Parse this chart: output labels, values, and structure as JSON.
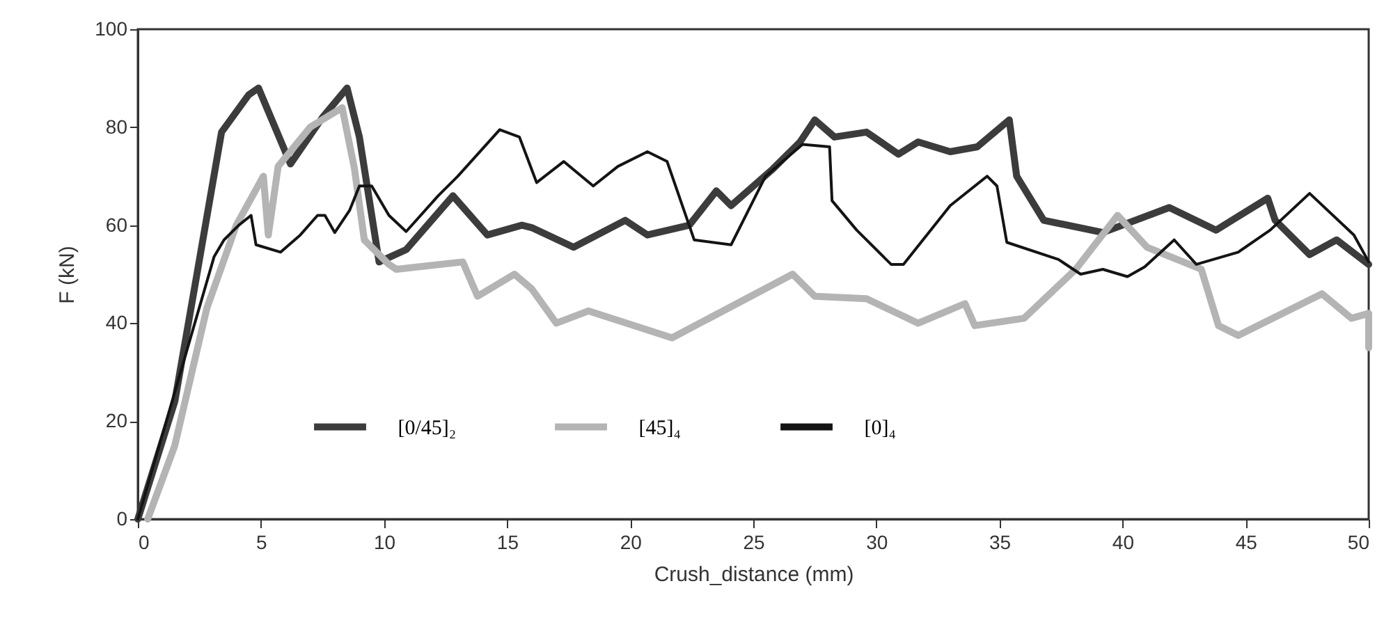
{
  "chart_data": {
    "type": "line",
    "xlabel": "Crush_distance (mm)",
    "ylabel": "F (kN)",
    "xlim": [
      0,
      50
    ],
    "ylim": [
      0,
      100
    ],
    "xticks": [
      0,
      5,
      10,
      15,
      20,
      25,
      30,
      35,
      40,
      45,
      50
    ],
    "yticks": [
      0,
      20,
      40,
      60,
      80,
      100
    ],
    "grid": false,
    "legend": "bottom",
    "line_style": "solid",
    "marker": "none",
    "series": [
      {
        "name": "[0/45]₂",
        "color": "#3c3c3c",
        "x": [
          0,
          1.5,
          2.4,
          3.4,
          4.5,
          4.9,
          6.2,
          7.5,
          8.5,
          9,
          9.8,
          10.9,
          12.8,
          14.2,
          15.6,
          16,
          17.7,
          19.8,
          20.7,
          22.4,
          23.5,
          24.1,
          25.8,
          26.9,
          27.5,
          28.3,
          29.6,
          30.9,
          31.7,
          33,
          34.1,
          35.4,
          35.7,
          36.8,
          39.2,
          41.9,
          43.8,
          45.9,
          46.2,
          47.6,
          48.7,
          50
        ],
        "values": [
          0,
          24,
          50,
          79,
          86.6,
          88,
          72.5,
          82,
          88,
          78,
          52.5,
          55,
          66,
          58,
          60,
          59.5,
          55.5,
          61,
          58,
          60,
          67,
          64,
          71.5,
          77,
          81.5,
          78,
          79,
          74.5,
          77,
          75,
          76,
          81.5,
          70,
          61,
          58.5,
          63.6,
          59,
          65.5,
          61,
          54,
          57,
          52
        ]
      },
      {
        "name": "[45]₄",
        "color": "#b4b4b4",
        "x": [
          0.4,
          1.5,
          2.8,
          4,
          5.1,
          5.3,
          5.7,
          7,
          8.3,
          8.8,
          9.2,
          10.2,
          10.5,
          13.2,
          13.8,
          15.3,
          16,
          17,
          18.3,
          21.7,
          26.6,
          27.5,
          29.6,
          31.7,
          33.6,
          34,
          36,
          38.1,
          39.8,
          41,
          43.2,
          43.9,
          44.7,
          48.1,
          49.3,
          50,
          50
        ],
        "values": [
          0,
          15,
          43,
          60,
          70,
          58,
          72,
          80,
          84,
          71.5,
          57,
          52,
          51,
          52.5,
          45.5,
          50,
          47,
          40,
          42.5,
          37,
          50,
          45.5,
          45,
          40,
          44,
          39.5,
          41,
          51,
          62,
          55.5,
          51,
          39.5,
          37.5,
          46,
          41,
          42,
          35
        ]
      },
      {
        "name": "[0]₄",
        "color": "#141414",
        "x": [
          0,
          3.1,
          3.5,
          4.1,
          4.6,
          4.8,
          5.8,
          6.6,
          7.3,
          7.6,
          8,
          8.6,
          9,
          9.5,
          10.2,
          10.9,
          12.2,
          13,
          14.7,
          15.5,
          16.2,
          17.3,
          18.5,
          19.5,
          20.7,
          21.5,
          22.6,
          24.1,
          25.5,
          27,
          28.1,
          28.2,
          29.2,
          30.6,
          31.1,
          33,
          34.5,
          34.9,
          35.3,
          37.4,
          38.3,
          39.2,
          40.2,
          40.9,
          42.1,
          43,
          44.7,
          46,
          47.6,
          49.4,
          50
        ],
        "values": [
          0,
          53.6,
          57,
          60,
          62,
          56,
          54.5,
          58,
          62,
          62,
          58.5,
          63,
          68,
          68,
          62,
          58.7,
          66,
          70,
          79.5,
          78,
          68.7,
          73,
          68,
          72,
          75,
          73,
          57,
          56,
          70,
          76.5,
          76,
          65,
          59,
          52,
          52,
          64,
          70,
          68,
          56.5,
          53,
          50,
          51,
          49.5,
          51.5,
          57,
          52,
          54.5,
          59,
          66.5,
          58,
          52.5
        ]
      }
    ]
  }
}
